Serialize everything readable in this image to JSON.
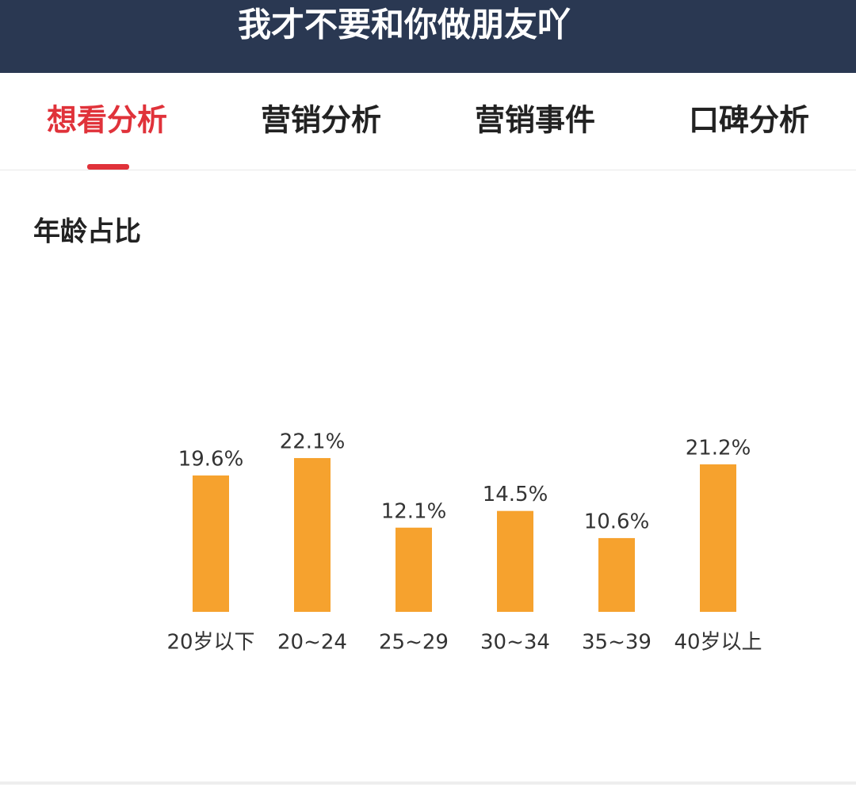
{
  "header": {
    "title": "我才不要和你做朋友吖"
  },
  "tabs": [
    "想看分析",
    "营销分析",
    "营销事件",
    "口碑分析"
  ],
  "chart_data": {
    "type": "bar",
    "title": "年龄占比",
    "categories": [
      "20岁以下",
      "20~24",
      "25~29",
      "30~34",
      "35~39",
      "40岁以上"
    ],
    "values": [
      19.6,
      22.1,
      12.1,
      14.5,
      10.6,
      21.2
    ],
    "value_labels": [
      "19.6%",
      "22.1%",
      "12.1%",
      "14.5%",
      "10.6%",
      "21.2%"
    ],
    "color": "#f6a22e"
  }
}
